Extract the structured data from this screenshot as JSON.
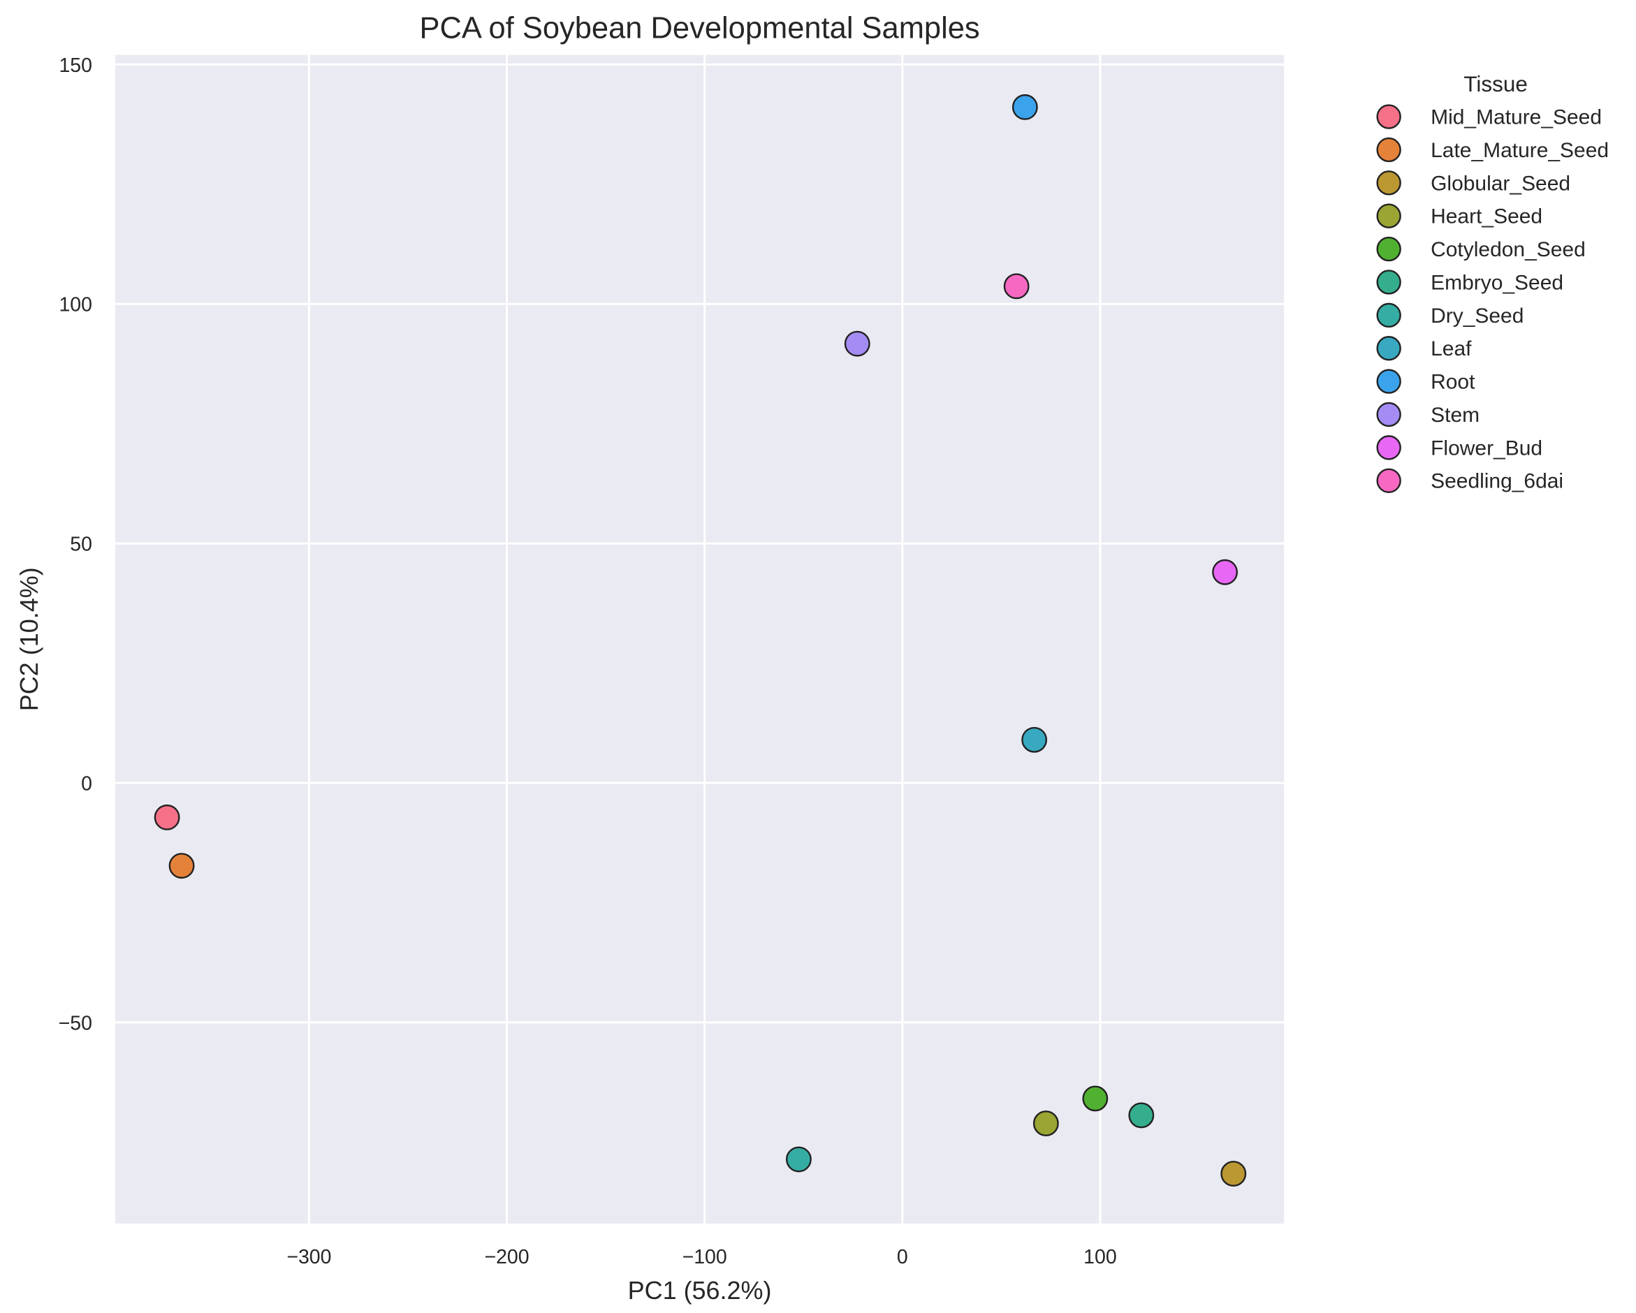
{
  "chart_data": {
    "type": "scatter",
    "title": "PCA of Soybean Developmental Samples",
    "xlabel": "PC1 (56.2%)",
    "ylabel": "PC2 (10.4%)",
    "xlim": [
      -398,
      193
    ],
    "ylim": [
      -92,
      152
    ],
    "xticks": [
      -300,
      -200,
      -100,
      0,
      100
    ],
    "yticks": [
      -50,
      0,
      50,
      100,
      150
    ],
    "grid": true,
    "background": "#eaeaf2",
    "legend": {
      "title": "Tissue",
      "placement": "outside-right"
    },
    "series": [
      {
        "name": "Mid_Mature_Seed",
        "color": "#f67088",
        "x": -371.8,
        "y": -7.2
      },
      {
        "name": "Late_Mature_Seed",
        "color": "#e5823a",
        "x": -364.4,
        "y": -17.3
      },
      {
        "name": "Globular_Seed",
        "color": "#bb9832",
        "x": 167.4,
        "y": -81.6
      },
      {
        "name": "Heart_Seed",
        "color": "#9aa533",
        "x": 72.6,
        "y": -71.1
      },
      {
        "name": "Cotyledon_Seed",
        "color": "#50b131",
        "x": 97.5,
        "y": -65.9
      },
      {
        "name": "Embryo_Seed",
        "color": "#34ae8d",
        "x": 120.8,
        "y": -69.4
      },
      {
        "name": "Dry_Seed",
        "color": "#36ada4",
        "x": -52.4,
        "y": -78.6
      },
      {
        "name": "Leaf",
        "color": "#38a9c0",
        "x": 66.7,
        "y": 9.0
      },
      {
        "name": "Root",
        "color": "#3ba3ec",
        "x": 62.0,
        "y": 141.1
      },
      {
        "name": "Stem",
        "color": "#a48cf4",
        "x": -22.8,
        "y": 91.7
      },
      {
        "name": "Flower_Bud",
        "color": "#e867f4",
        "x": 163.1,
        "y": 44.0
      },
      {
        "name": "Seedling_6dai",
        "color": "#f668c2",
        "x": 57.7,
        "y": 103.7
      }
    ]
  }
}
